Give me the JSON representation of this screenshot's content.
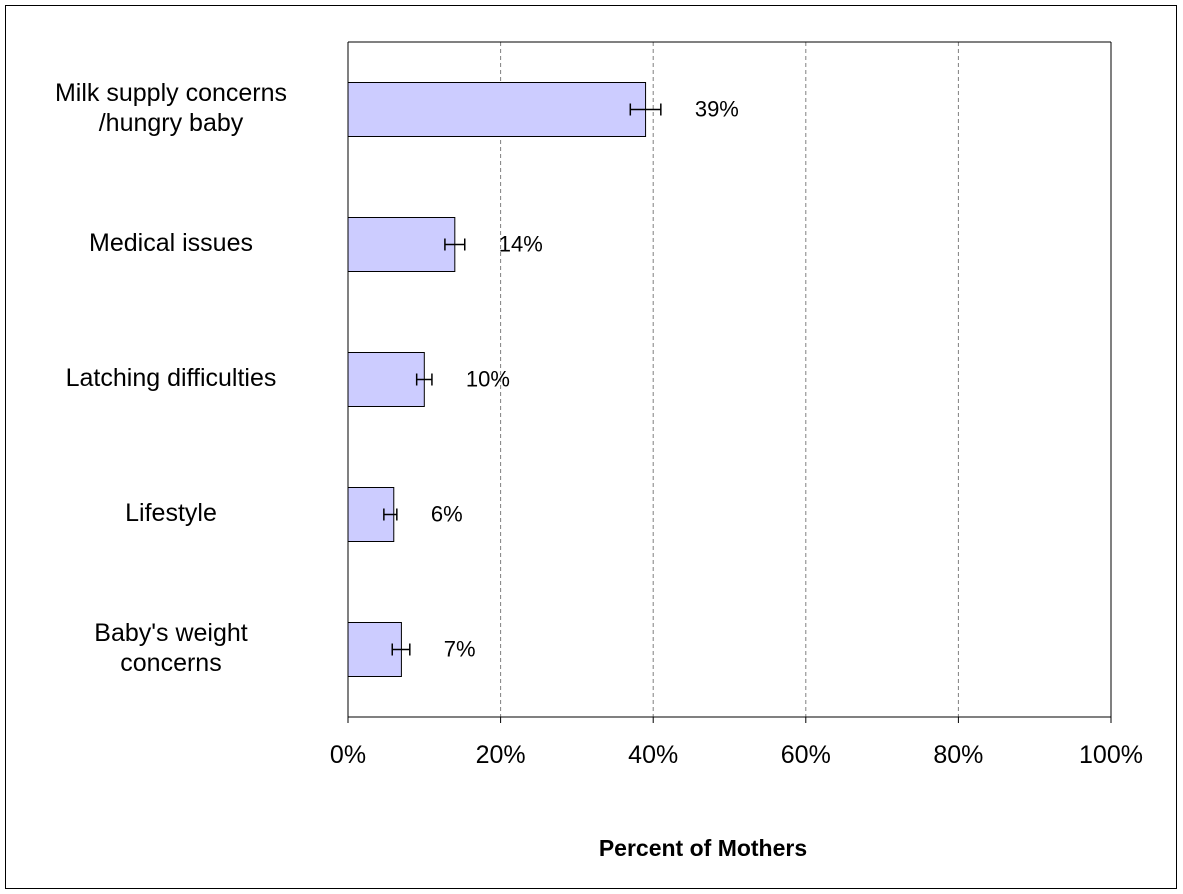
{
  "chart_data": {
    "type": "bar",
    "orientation": "horizontal",
    "categories": [
      [
        "Milk supply concerns",
        "/hungry baby"
      ],
      [
        "Medical issues"
      ],
      [
        "Latching difficulties"
      ],
      [
        "Lifestyle"
      ],
      [
        "Baby's weight",
        "concerns"
      ]
    ],
    "values": [
      39,
      14,
      10,
      6,
      7
    ],
    "value_labels": [
      "39%",
      "14%",
      "10%",
      "6%",
      "7%"
    ],
    "error_bars": [
      [
        37,
        41
      ],
      [
        12.7,
        15.3
      ],
      [
        9,
        11
      ],
      [
        4.7,
        6.4
      ],
      [
        5.8,
        8.1
      ]
    ],
    "xlim": [
      0,
      100
    ],
    "x_ticks": [
      0,
      20,
      40,
      60,
      80,
      100
    ],
    "x_tick_labels": [
      "0%",
      "20%",
      "40%",
      "60%",
      "80%",
      "100%"
    ],
    "xlabel": "Percent of Mothers",
    "ylabel": "",
    "title": "",
    "grid": "vertical-dashed",
    "legend": "none",
    "colors": {
      "bar_fill": "#ccccff",
      "bar_stroke": "#000000",
      "grid": "#808080"
    }
  }
}
